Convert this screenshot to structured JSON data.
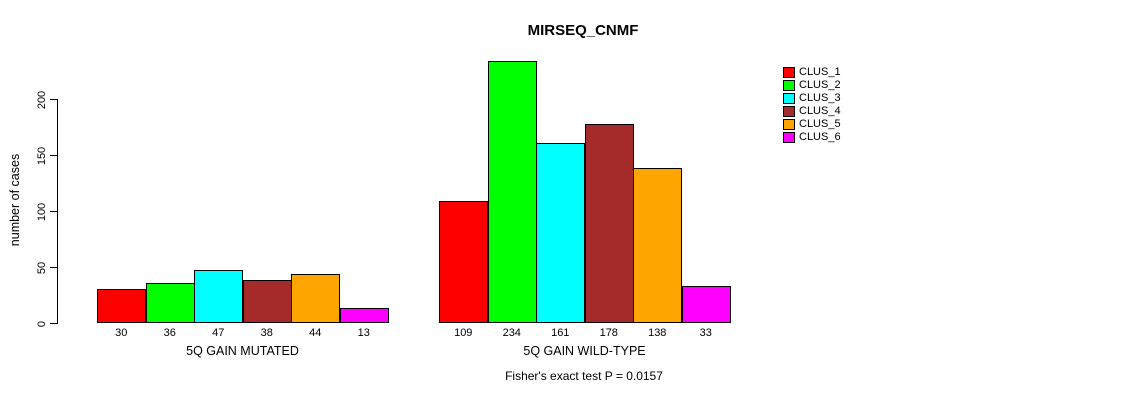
{
  "chart_data": {
    "type": "bar",
    "title": "MIRSEQ_CNMF",
    "ylabel": "number of cases",
    "yticks": [
      0,
      50,
      100,
      150,
      200
    ],
    "ylim": [
      0,
      234
    ],
    "grid": false,
    "legend_position": "right",
    "background": "#FFFFFF",
    "axis_color": "#000000",
    "bar_border_color": "#000000",
    "series": [
      {
        "name": "CLUS_1",
        "color": "#FF0000"
      },
      {
        "name": "CLUS_2",
        "color": "#00FF00"
      },
      {
        "name": "CLUS_3",
        "color": "#00FFFF"
      },
      {
        "name": "CLUS_4",
        "color": "#A52A2A"
      },
      {
        "name": "CLUS_5",
        "color": "#FFA500"
      },
      {
        "name": "CLUS_6",
        "color": "#FF00FF"
      }
    ],
    "groups": [
      {
        "label": "5Q GAIN MUTATED",
        "values": [
          30,
          36,
          47,
          38,
          44,
          13
        ]
      },
      {
        "label": "5Q GAIN WILD-TYPE",
        "values": [
          109,
          234,
          161,
          178,
          138,
          33
        ]
      }
    ],
    "annotation": "Fisher's exact test P = 0.0157"
  }
}
